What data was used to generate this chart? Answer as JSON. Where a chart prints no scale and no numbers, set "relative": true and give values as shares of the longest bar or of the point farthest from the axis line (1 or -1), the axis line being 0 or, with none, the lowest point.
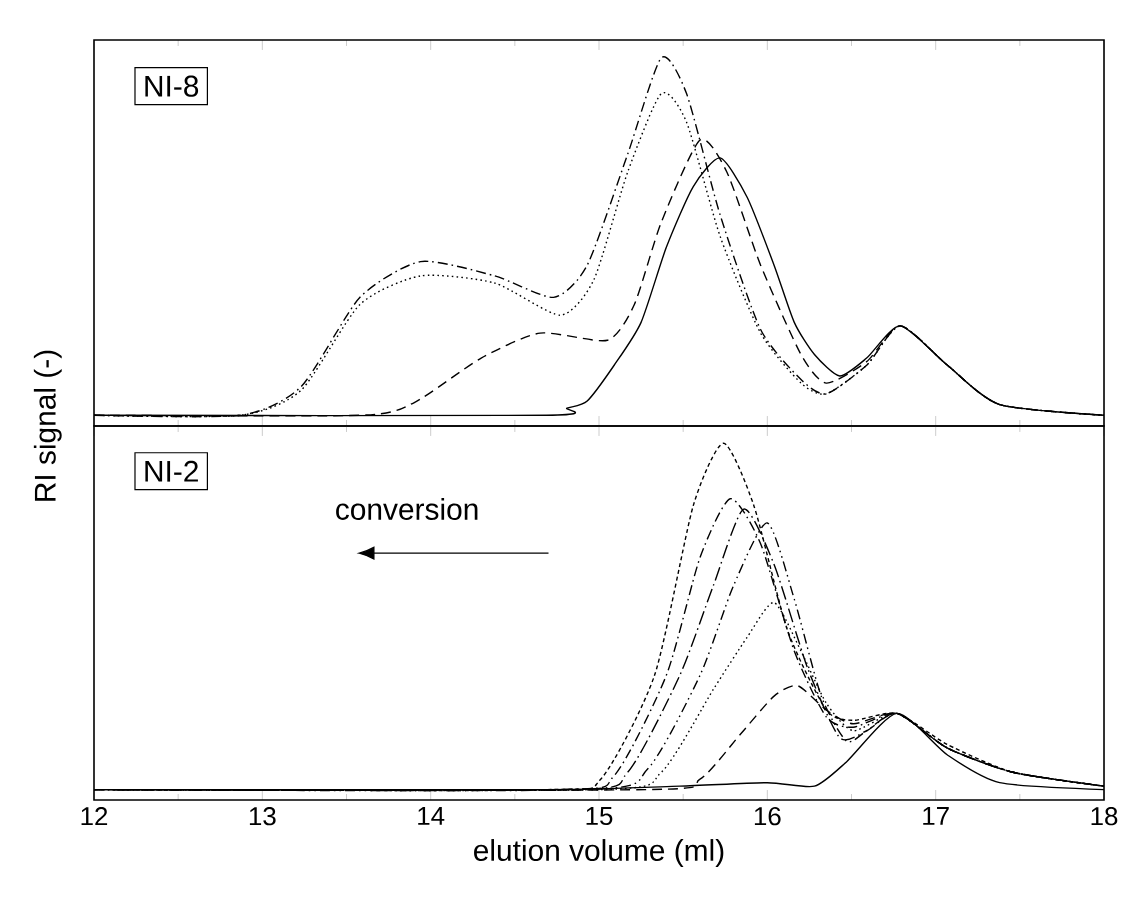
{
  "chart_data": [
    {
      "type": "line",
      "relative": true,
      "ylabel": "RI signal (-)",
      "xlim": [
        12,
        18
      ],
      "xticks": [
        12,
        13,
        14,
        15,
        16,
        17,
        18
      ],
      "tick_labels": false,
      "annotations": [
        "NI-8"
      ],
      "series": [
        {
          "color": "#000000",
          "line_style": "solid",
          "x": [
            12,
            14.69,
            14.81,
            14.93,
            15.09,
            15.25,
            15.4,
            15.56,
            15.72,
            15.88,
            16.04,
            16.16,
            16.28,
            16.43,
            16.59,
            16.79,
            17.07,
            17.38,
            18
          ],
          "values": [
            0,
            0,
            0.02,
            0.04,
            0.14,
            0.26,
            0.47,
            0.64,
            0.72,
            0.61,
            0.42,
            0.26,
            0.17,
            0.11,
            0.16,
            0.25,
            0.14,
            0.03,
            0
          ]
        },
        {
          "color": "#000000",
          "line_style": "dashed",
          "x": [
            12,
            13.58,
            13.9,
            14.3,
            14.65,
            15.05,
            15.21,
            15.37,
            15.6,
            15.76,
            15.96,
            16.2,
            16.35,
            16.59,
            16.79,
            17.07,
            17.38,
            18
          ],
          "values": [
            0,
            0,
            0.035,
            0.16,
            0.23,
            0.21,
            0.31,
            0.54,
            0.77,
            0.68,
            0.42,
            0.17,
            0.09,
            0.15,
            0.25,
            0.14,
            0.03,
            0
          ]
        },
        {
          "color": "#000000",
          "line_style": "dotted",
          "x": [
            12,
            12.87,
            13.23,
            13.58,
            13.94,
            14.38,
            14.77,
            14.97,
            15.17,
            15.37,
            15.52,
            15.72,
            15.96,
            16.2,
            16.35,
            16.59,
            16.79,
            17.07,
            17.38,
            18
          ],
          "values": [
            0,
            0,
            0.07,
            0.31,
            0.39,
            0.37,
            0.28,
            0.38,
            0.68,
            0.9,
            0.82,
            0.5,
            0.23,
            0.09,
            0.06,
            0.14,
            0.25,
            0.14,
            0.03,
            0
          ]
        },
        {
          "color": "#000000",
          "line_style": "dashdot",
          "x": [
            12,
            12.87,
            13.23,
            13.58,
            13.94,
            14.38,
            14.73,
            14.93,
            15.17,
            15.37,
            15.52,
            15.72,
            15.96,
            16.2,
            16.35,
            16.59,
            16.79,
            17.07,
            17.38,
            18
          ],
          "values": [
            0,
            0,
            0.08,
            0.33,
            0.43,
            0.39,
            0.33,
            0.42,
            0.73,
            1.0,
            0.9,
            0.56,
            0.24,
            0.1,
            0.06,
            0.14,
            0.25,
            0.14,
            0.03,
            0
          ]
        }
      ]
    },
    {
      "type": "line",
      "relative": true,
      "xlabel": "elution volume (ml)",
      "xlim": [
        12,
        18
      ],
      "xticks": [
        12,
        13,
        14,
        15,
        16,
        17,
        18
      ],
      "tick_labels": "x",
      "annotations": [
        "NI-2",
        "conversion"
      ],
      "series": [
        {
          "color": "#000000",
          "line_style": "solid",
          "x": [
            12,
            14.69,
            15.48,
            16.0,
            16.28,
            16.47,
            16.77,
            17.07,
            17.38,
            18
          ],
          "values": [
            0,
            0,
            0.01,
            0.02,
            0.01,
            0.08,
            0.22,
            0.1,
            0.02,
            0
          ]
        },
        {
          "color": "#000000",
          "line_style": "shortdash",
          "x": [
            12,
            14.69,
            15.01,
            15.33,
            15.56,
            15.74,
            15.92,
            16.12,
            16.35,
            16.51,
            16.77,
            17.07,
            17.46,
            18
          ],
          "values": [
            0,
            0,
            0.03,
            0.33,
            0.82,
            1.0,
            0.82,
            0.46,
            0.23,
            0.2,
            0.22,
            0.13,
            0.05,
            0.01
          ]
        },
        {
          "color": "#000000",
          "line_style": "dashdot",
          "x": [
            12,
            14.77,
            15.09,
            15.4,
            15.6,
            15.78,
            15.96,
            16.16,
            16.35,
            16.51,
            16.77,
            17.07,
            17.46,
            18
          ],
          "values": [
            0,
            0,
            0.04,
            0.33,
            0.67,
            0.84,
            0.71,
            0.4,
            0.21,
            0.18,
            0.22,
            0.12,
            0.05,
            0.01
          ]
        },
        {
          "color": "#000000",
          "line_style": "longdashdot",
          "x": [
            12,
            14.85,
            15.17,
            15.48,
            15.68,
            15.86,
            16.04,
            16.24,
            16.43,
            16.59,
            16.77,
            17.07,
            17.46,
            18
          ],
          "values": [
            0,
            0,
            0.05,
            0.33,
            0.59,
            0.81,
            0.65,
            0.35,
            0.15,
            0.17,
            0.22,
            0.12,
            0.05,
            0.01
          ]
        },
        {
          "color": "#000000",
          "line_style": "dashdotdot",
          "x": [
            12,
            14.93,
            15.29,
            15.6,
            15.8,
            16.0,
            16.16,
            16.32,
            16.47,
            16.59,
            16.77,
            17.07,
            17.46,
            18
          ],
          "values": [
            0,
            0,
            0.06,
            0.33,
            0.59,
            0.77,
            0.55,
            0.27,
            0.14,
            0.17,
            0.22,
            0.12,
            0.05,
            0.01
          ]
        },
        {
          "color": "#000000",
          "line_style": "dotted",
          "x": [
            12,
            15.01,
            15.37,
            15.68,
            15.88,
            16.04,
            16.2,
            16.35,
            16.51,
            16.77,
            17.07,
            17.46,
            18
          ],
          "values": [
            0,
            0,
            0.05,
            0.29,
            0.44,
            0.54,
            0.4,
            0.25,
            0.17,
            0.22,
            0.12,
            0.05,
            0.01
          ]
        },
        {
          "color": "#000000",
          "line_style": "dashed",
          "x": [
            12,
            15.29,
            15.6,
            15.84,
            16.04,
            16.18,
            16.35,
            16.51,
            16.77,
            17.07,
            17.46,
            18
          ],
          "values": [
            0,
            0,
            0.03,
            0.16,
            0.27,
            0.3,
            0.23,
            0.19,
            0.22,
            0.12,
            0.05,
            0.01
          ]
        }
      ]
    }
  ]
}
